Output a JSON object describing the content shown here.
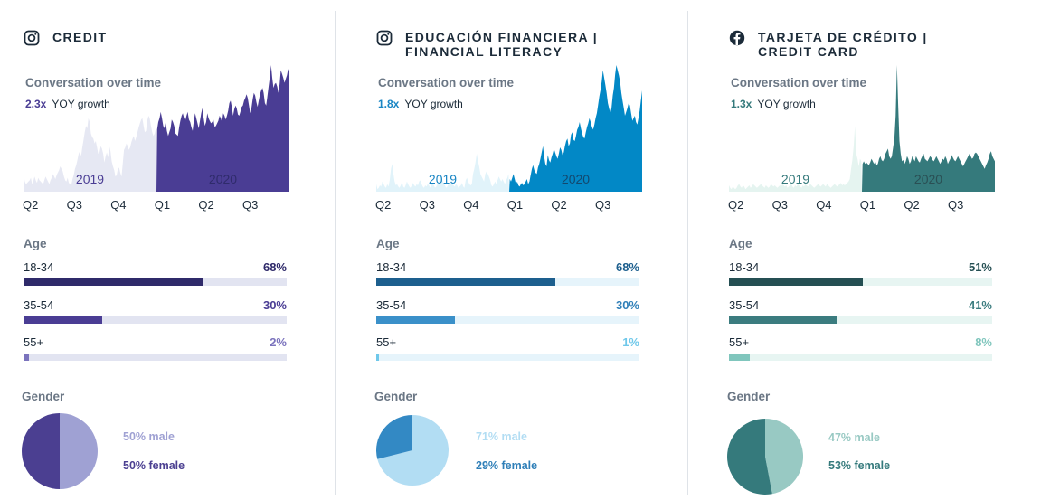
{
  "panels": [
    {
      "id": "credit",
      "title_lines": [
        "CREDIT"
      ],
      "title_icon": "instagram-icon",
      "conversation_title": "Conversation over time",
      "growth_multiplier": "2.3x",
      "growth_label": "YOY growth",
      "year_labels": [
        "2019",
        "2020"
      ],
      "quarter_labels": [
        "Q2",
        "Q3",
        "Q4",
        "Q1",
        "Q2",
        "Q3"
      ],
      "age_title": "Age",
      "gender_title": "Gender",
      "colors": {
        "area_2019": "#e6e8f3",
        "area_2020": "#4a3d94",
        "text_2019": "#4a3d94",
        "text_2020": "#2f2b6b",
        "multiplier": "#4a3d94",
        "track": "#e2e4f1",
        "bars": [
          "#2f2a6a",
          "#4a3d94",
          "#7b73bd"
        ],
        "pct_text": [
          "#2f2a6a",
          "#4a3d94",
          "#7b73bd"
        ],
        "pie_male": "#9fa1d3",
        "pie_female": "#4b3f91",
        "male_text": "#9fa1d3",
        "female_text": "#4b3f91"
      },
      "age": [
        {
          "label": "18-34",
          "percent_label": "68%",
          "value": 68
        },
        {
          "label": "35-54",
          "percent_label": "30%",
          "value": 30
        },
        {
          "label": "55+",
          "percent_label": "2%",
          "value": 2
        }
      ],
      "gender": {
        "male_label": "50% male",
        "female_label": "50% female",
        "male": 50,
        "female": 50
      },
      "series": [
        14,
        8,
        6,
        7,
        8,
        9,
        11,
        6,
        8,
        12,
        9,
        7,
        11,
        9,
        8,
        7,
        6,
        9,
        12,
        10,
        8,
        6,
        9,
        11,
        14,
        12,
        10,
        13,
        15,
        17,
        20,
        18,
        16,
        12,
        9,
        8,
        11,
        7,
        6,
        5,
        10,
        13,
        18,
        21,
        25,
        30,
        32,
        28,
        35,
        41,
        47,
        52,
        50,
        58,
        55,
        46,
        43,
        42,
        38,
        40,
        35,
        30,
        31,
        36,
        34,
        30,
        23,
        28,
        31,
        27,
        36,
        32,
        24,
        20,
        17,
        12,
        13,
        18,
        19,
        15,
        12,
        22,
        33,
        35,
        38,
        36,
        33,
        35,
        39,
        42,
        44,
        40,
        43,
        47,
        51,
        54,
        57,
        58,
        52,
        47,
        48,
        56,
        60,
        58,
        52,
        47,
        44,
        46,
        50,
        49,
        55,
        58,
        63,
        58,
        52,
        50,
        55,
        48,
        44,
        47,
        50,
        57,
        55,
        52,
        46,
        45,
        44,
        51,
        56,
        60,
        62,
        58,
        56,
        60,
        63,
        57,
        55,
        51,
        48,
        56,
        62,
        58,
        54,
        50,
        56,
        62,
        66,
        58,
        52,
        55,
        62,
        58,
        56,
        54,
        55,
        57,
        51,
        52,
        54,
        56,
        60,
        58,
        55,
        62,
        60,
        57,
        60,
        64,
        70,
        72,
        67,
        60,
        65,
        68,
        66,
        61,
        60,
        63,
        67,
        68,
        72,
        74,
        77,
        74,
        68,
        62,
        66,
        73,
        78,
        76,
        71,
        67,
        72,
        77,
        80,
        82,
        78,
        70,
        68,
        75,
        83,
        90,
        100,
        90,
        82,
        85,
        86,
        83,
        78,
        85,
        96,
        93,
        90,
        86,
        89,
        92,
        97,
        93
      ]
    },
    {
      "id": "financial-literacy",
      "title_lines": [
        "EDUCACIÓN FINANCIERA |",
        "FINANCIAL LITERACY"
      ],
      "title_icon": "instagram-icon",
      "conversation_title": "Conversation over time",
      "growth_multiplier": "1.8x",
      "growth_label": "YOY growth",
      "year_labels": [
        "2019",
        "2020"
      ],
      "quarter_labels": [
        "Q2",
        "Q3",
        "Q4",
        "Q1",
        "Q2",
        "Q3"
      ],
      "age_title": "Age",
      "gender_title": "Gender",
      "colors": {
        "area_2019": "#e1f3fa",
        "area_2020": "#0288c6",
        "text_2019": "#1a86c4",
        "text_2020": "#13486e",
        "multiplier": "#1a86c4",
        "track": "#e6f4fb",
        "bars": [
          "#1d5f8e",
          "#3a90c9",
          "#6fc8ea"
        ],
        "pct_text": [
          "#1d5f8e",
          "#2f7fb8",
          "#6fc8ea"
        ],
        "pie_male": "#b2ddf3",
        "pie_female": "#3389c4",
        "male_text": "#b2ddf3",
        "female_text": "#2f7fb8"
      },
      "age": [
        {
          "label": "18-34",
          "percent_label": "68%",
          "value": 68
        },
        {
          "label": "35-54",
          "percent_label": "30%",
          "value": 30
        },
        {
          "label": "55+",
          "percent_label": "1%",
          "value": 1
        }
      ],
      "gender": {
        "male_label": "71% male",
        "female_label": "29% female",
        "male": 71,
        "female": 29
      },
      "series": [
        6,
        2,
        3,
        5,
        4,
        8,
        6,
        4,
        3,
        6,
        4,
        9,
        18,
        22,
        14,
        8,
        5,
        6,
        4,
        3,
        5,
        8,
        4,
        3,
        5,
        8,
        6,
        4,
        3,
        5,
        7,
        5,
        4,
        6,
        5,
        8,
        9,
        6,
        4,
        3,
        5,
        4,
        6,
        5,
        3,
        7,
        6,
        5,
        3,
        4,
        6,
        7,
        11,
        14,
        9,
        6,
        5,
        3,
        4,
        6,
        5,
        8,
        6,
        5,
        4,
        6,
        5,
        3,
        4,
        5,
        7,
        4,
        3,
        9,
        11,
        8,
        6,
        5,
        6,
        14,
        18,
        23,
        30,
        24,
        20,
        14,
        12,
        10,
        8,
        14,
        16,
        14,
        12,
        9,
        5,
        4,
        6,
        8,
        6,
        9,
        12,
        10,
        8,
        10,
        8,
        6,
        9,
        11,
        14,
        10,
        8,
        11,
        14,
        10,
        6,
        8,
        5,
        4,
        6,
        7,
        5,
        6,
        8,
        10,
        6,
        8,
        13,
        18,
        21,
        17,
        15,
        14,
        19,
        22,
        26,
        31,
        36,
        28,
        22,
        20,
        29,
        25,
        23,
        27,
        30,
        34,
        31,
        28,
        26,
        30,
        35,
        33,
        29,
        31,
        36,
        40,
        42,
        36,
        38,
        45,
        47,
        41,
        40,
        44,
        49,
        51,
        55,
        50,
        46,
        43,
        42,
        47,
        51,
        54,
        58,
        55,
        51,
        49,
        53,
        58,
        62,
        68,
        75,
        80,
        87,
        96,
        90,
        84,
        78,
        70,
        66,
        62,
        66,
        76,
        82,
        93,
        100,
        96,
        92,
        87,
        78,
        72,
        66,
        60,
        63,
        66,
        70,
        68,
        62,
        56,
        58,
        60,
        55,
        53,
        58,
        64,
        72,
        80
      ]
    },
    {
      "id": "credit-card",
      "title_lines": [
        "TARJETA DE CRÉDITO |",
        "CREDIT CARD"
      ],
      "title_icon": "facebook-icon",
      "conversation_title": "Conversation over time",
      "growth_multiplier": "1.3x",
      "growth_label": "YOY growth",
      "year_labels": [
        "2019",
        "2020"
      ],
      "quarter_labels": [
        "Q2",
        "Q3",
        "Q4",
        "Q1",
        "Q2",
        "Q3"
      ],
      "age_title": "Age",
      "gender_title": "Gender",
      "colors": {
        "area_2019": "#e5f4f0",
        "area_2020": "#357a7c",
        "text_2019": "#357a7c",
        "text_2020": "#2a4f54",
        "multiplier": "#357a7c",
        "track": "#e7f5f2",
        "bars": [
          "#254f53",
          "#3b7c7f",
          "#80c6bd"
        ],
        "pct_text": [
          "#254f53",
          "#3b7c7f",
          "#80c6bd"
        ],
        "pie_male": "#98c9c3",
        "pie_female": "#357a7c",
        "male_text": "#98c9c3",
        "female_text": "#357a7c"
      },
      "age": [
        {
          "label": "18-34",
          "percent_label": "51%",
          "value": 51
        },
        {
          "label": "35-54",
          "percent_label": "41%",
          "value": 41
        },
        {
          "label": "55+",
          "percent_label": "8%",
          "value": 8
        }
      ],
      "gender": {
        "male_label": "47% male",
        "female_label": "53% female",
        "male": 47,
        "female": 53
      },
      "series": [
        5,
        3,
        2,
        4,
        3,
        2,
        3,
        5,
        6,
        4,
        3,
        5,
        4,
        2,
        3,
        4,
        5,
        3,
        4,
        6,
        5,
        4,
        3,
        4,
        5,
        6,
        5,
        4,
        3,
        5,
        4,
        3,
        4,
        6,
        5,
        4,
        5,
        4,
        3,
        4,
        5,
        4,
        6,
        5,
        4,
        5,
        3,
        4,
        5,
        6,
        4,
        3,
        5,
        4,
        6,
        5,
        4,
        3,
        5,
        4,
        6,
        5,
        4,
        5,
        6,
        5,
        4,
        3,
        4,
        5,
        6,
        5,
        4,
        5,
        6,
        5,
        4,
        6,
        5,
        4,
        3,
        4,
        5,
        6,
        5,
        4,
        5,
        6,
        7,
        5,
        6,
        5,
        6,
        7,
        8,
        10,
        18,
        25,
        36,
        52,
        30,
        26,
        20,
        26,
        24,
        22,
        24,
        22,
        23,
        22,
        21,
        23,
        26,
        24,
        22,
        24,
        21,
        22,
        26,
        28,
        25,
        24,
        26,
        30,
        32,
        34,
        28,
        26,
        28,
        35,
        42,
        60,
        100,
        68,
        40,
        30,
        24,
        25,
        22,
        24,
        28,
        26,
        22,
        24,
        28,
        26,
        24,
        28,
        26,
        24,
        23,
        26,
        28,
        30,
        26,
        25,
        24,
        26,
        28,
        27,
        25,
        24,
        26,
        28,
        26,
        24,
        22,
        24,
        26,
        25,
        28,
        26,
        22,
        24,
        26,
        29,
        27,
        25,
        24,
        26,
        28,
        26,
        24,
        22,
        20,
        22,
        24,
        26,
        28,
        30,
        28,
        26,
        27,
        30,
        31,
        30,
        28,
        26,
        24,
        22,
        20,
        18,
        21,
        23,
        26,
        30,
        32,
        28,
        26,
        24
      ]
    }
  ]
}
